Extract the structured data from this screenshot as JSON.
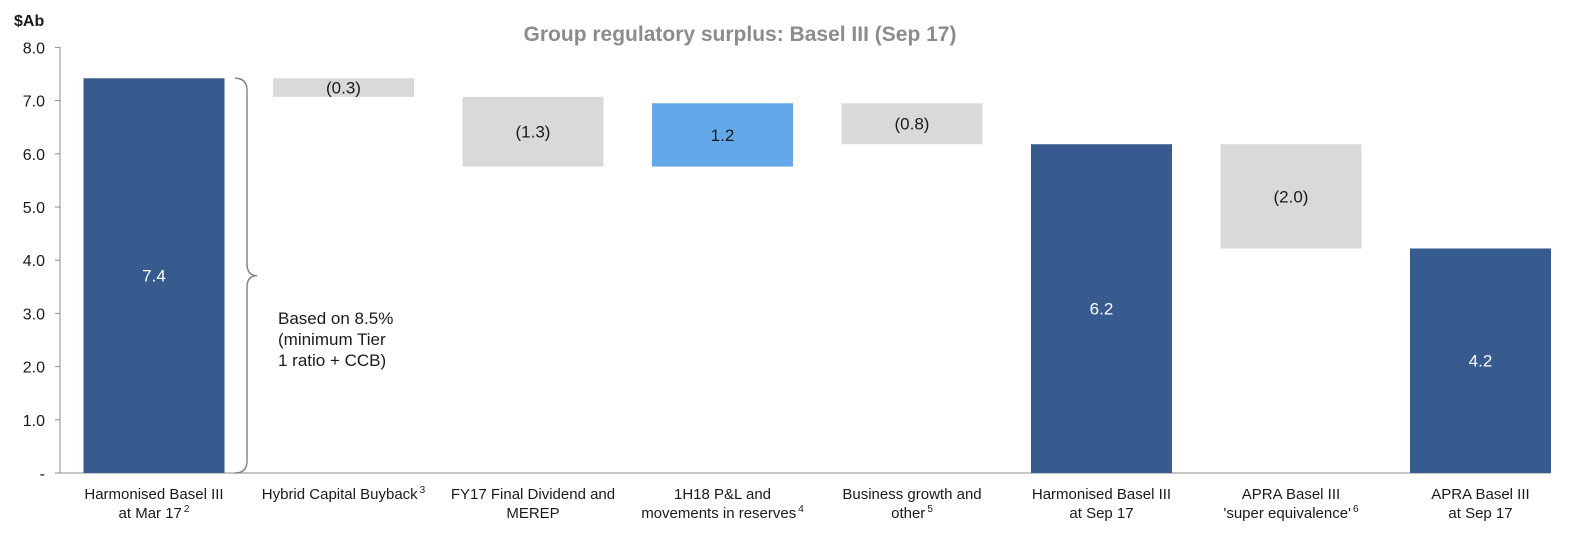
{
  "chart_data": {
    "type": "bar",
    "subtype": "waterfall",
    "title": "Group regulatory surplus: Basel III (Sep 17)",
    "unit_label": "$Ab",
    "ylim": [
      0,
      8
    ],
    "y_ticks": [
      {
        "value": 0,
        "label": "-"
      },
      {
        "value": 1,
        "label": "1.0"
      },
      {
        "value": 2,
        "label": "2.0"
      },
      {
        "value": 3,
        "label": "3.0"
      },
      {
        "value": 4,
        "label": "4.0"
      },
      {
        "value": 5,
        "label": "5.0"
      },
      {
        "value": 6,
        "label": "6.0"
      },
      {
        "value": 7,
        "label": "7.0"
      },
      {
        "value": 8,
        "label": "8.0"
      }
    ],
    "grid": false,
    "categories": [
      {
        "lines": [
          "Harmonised Basel III",
          "at Mar 17"
        ],
        "footnote": "2"
      },
      {
        "lines": [
          "Hybrid Capital Buyback"
        ],
        "footnote": "3"
      },
      {
        "lines": [
          "FY17 Final Dividend and",
          "MEREP"
        ],
        "footnote": ""
      },
      {
        "lines": [
          "1H18 P&L and",
          "movements in reserves"
        ],
        "footnote": "4"
      },
      {
        "lines": [
          "Business growth and",
          "other"
        ],
        "footnote": "5"
      },
      {
        "lines": [
          "Harmonised Basel III",
          "at Sep 17"
        ],
        "footnote": ""
      },
      {
        "lines": [
          "APRA Basel III",
          "'super equivalence'"
        ],
        "footnote": "6"
      },
      {
        "lines": [
          "APRA Basel III",
          "at Sep 17"
        ],
        "footnote": ""
      }
    ],
    "bars": [
      {
        "kind": "total",
        "start": 0,
        "end": 7.42,
        "label": "7.4"
      },
      {
        "kind": "decrease",
        "start": 7.42,
        "end": 7.07,
        "label": "(0.3)"
      },
      {
        "kind": "decrease",
        "start": 7.07,
        "end": 5.76,
        "label": "(1.3)"
      },
      {
        "kind": "increase",
        "start": 5.76,
        "end": 6.95,
        "label": "1.2"
      },
      {
        "kind": "decrease",
        "start": 6.95,
        "end": 6.18,
        "label": "(0.8)"
      },
      {
        "kind": "total",
        "start": 0,
        "end": 6.18,
        "label": "6.2"
      },
      {
        "kind": "decrease",
        "start": 6.18,
        "end": 4.22,
        "label": "(2.0)"
      },
      {
        "kind": "total",
        "start": 0,
        "end": 4.22,
        "label": "4.2"
      }
    ],
    "colors": {
      "total": "#375a8f",
      "decrease": "#d9d9d9",
      "increase": "#63a9ea",
      "title": "#8c8c8c",
      "text": "#1a1a1a",
      "label_on_dark": "#ffffff",
      "axis": "#8c8c8c"
    },
    "annotation": {
      "lines": [
        "Based on 8.5%",
        "(minimum Tier",
        "1 ratio + CCB)"
      ],
      "brace_from": 0,
      "brace_to": 7.42
    }
  }
}
